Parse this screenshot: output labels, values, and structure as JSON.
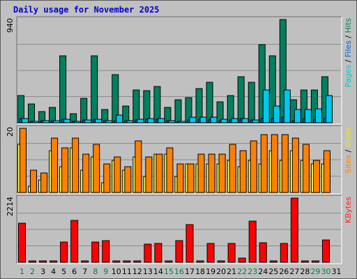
{
  "chart_data": {
    "type": "bar",
    "title": "Daily usage for November 2025",
    "categories": [
      "1",
      "2",
      "3",
      "4",
      "5",
      "6",
      "7",
      "8",
      "9",
      "10",
      "11",
      "12",
      "13",
      "14",
      "15",
      "16",
      "17",
      "18",
      "19",
      "20",
      "21",
      "22",
      "23",
      "24",
      "25",
      "26",
      "27",
      "28",
      "29",
      "30",
      "31"
    ],
    "weekend_days": [
      "1",
      "2",
      "8",
      "9",
      "15",
      "16",
      "22",
      "23",
      "29",
      "30"
    ],
    "grid": true,
    "panels": [
      {
        "id": "hits-files-pages",
        "max_label": "940",
        "ylim": [
          0,
          940
        ],
        "legend": [
          {
            "text": "Pages",
            "color": "#00c8d0"
          },
          {
            "text": " / ",
            "color": "#000000"
          },
          {
            "text": "Files",
            "color": "#0066cc"
          },
          {
            "text": " / ",
            "color": "#000000"
          },
          {
            "text": "Hits",
            "color": "#00805a"
          }
        ],
        "series": [
          {
            "name": "Hits",
            "color": "#008060",
            "values": [
              250,
              170,
              100,
              140,
              610,
              80,
              220,
              610,
              120,
              440,
              150,
              300,
              290,
              330,
              140,
              210,
              230,
              310,
              370,
              190,
              250,
              420,
              370,
              710,
              610,
              940,
              210,
              300,
              300,
              420,
              0
            ]
          },
          {
            "name": "Files",
            "color": "#0066cc",
            "values": [
              40,
              15,
              20,
              20,
              30,
              15,
              25,
              30,
              20,
              20,
              20,
              25,
              30,
              30,
              20,
              15,
              25,
              30,
              30,
              20,
              25,
              40,
              25,
              35,
              40,
              50,
              20,
              35,
              25,
              40,
              0
            ]
          },
          {
            "name": "Pages",
            "color": "#00c8f0",
            "values": [
              40,
              15,
              20,
              20,
              30,
              15,
              25,
              30,
              20,
              70,
              20,
              30,
              40,
              40,
              20,
              15,
              50,
              50,
              50,
              30,
              40,
              40,
              25,
              300,
              150,
              300,
              120,
              120,
              130,
              250,
              0
            ]
          }
        ]
      },
      {
        "id": "visits-sites",
        "max_label": "20",
        "ylim": [
          0,
          20
        ],
        "legend": [
          {
            "text": "Sites",
            "color": "#ff8000"
          },
          {
            "text": " / ",
            "color": "#000000"
          },
          {
            "text": "Visits",
            "color": "#f0e020"
          }
        ],
        "series": [
          {
            "name": "Visits",
            "color": "#ffff40",
            "values": [
              15,
              2,
              4,
              13,
              8,
              14,
              7,
              11,
              3,
              10,
              7,
              11,
              5,
              12,
              12,
              5,
              9,
              9,
              9,
              9,
              10,
              8,
              10,
              9,
              13,
              10,
              13,
              10,
              9,
              9,
              0
            ]
          },
          {
            "name": "Sites",
            "color": "#ff8000",
            "values": [
              20,
              7,
              6,
              17,
              14,
              17,
              12,
              15,
              9,
              11,
              8,
              16,
              11,
              12,
              14,
              9,
              9,
              12,
              12,
              12,
              15,
              13,
              16,
              18,
              18,
              18,
              17,
              15,
              10,
              13,
              0
            ]
          }
        ]
      },
      {
        "id": "kbytes",
        "max_label": "2214",
        "ylim": [
          0,
          2214
        ],
        "legend": [
          {
            "text": "KBytes",
            "color": "#ff2020"
          }
        ],
        "series": [
          {
            "name": "KBytes",
            "color": "#ff0000",
            "values": [
              1355,
              60,
              60,
              60,
              690,
              1445,
              60,
              690,
              750,
              60,
              60,
              60,
              630,
              645,
              60,
              745,
              1290,
              60,
              660,
              60,
              655,
              150,
              1425,
              685,
              60,
              660,
              2214,
              60,
              60,
              765,
              0
            ]
          }
        ]
      }
    ]
  }
}
